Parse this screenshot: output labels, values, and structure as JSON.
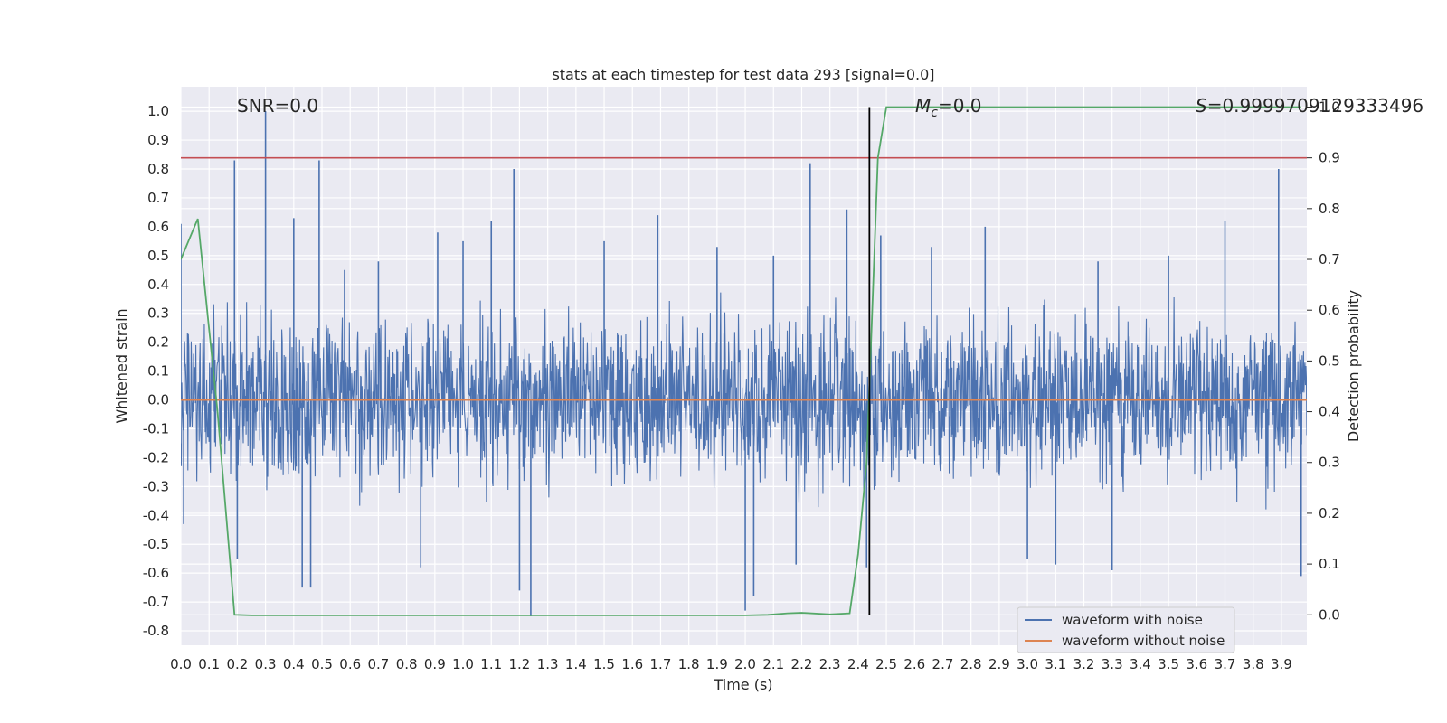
{
  "chart_data": {
    "type": "line",
    "title": "stats at each timestep for test data 293 [signal=0.0]",
    "xlabel": "Time (s)",
    "ylabel": "Whitened strain",
    "ylabel_right": "Detection probability",
    "xlim": [
      0.0,
      3.99
    ],
    "ylim": [
      -0.85,
      1.085
    ],
    "ylim_right": [
      -0.06,
      1.04
    ],
    "x_ticks": [
      "0.0",
      "0.1",
      "0.2",
      "0.3",
      "0.4",
      "0.5",
      "0.6",
      "0.7",
      "0.8",
      "0.9",
      "1.0",
      "1.1",
      "1.2",
      "1.3",
      "1.4",
      "1.5",
      "1.6",
      "1.7",
      "1.8",
      "1.9",
      "2.0",
      "2.1",
      "2.2",
      "2.3",
      "2.4",
      "2.5",
      "2.6",
      "2.7",
      "2.8",
      "2.9",
      "3.0",
      "3.1",
      "3.2",
      "3.3",
      "3.4",
      "3.5",
      "3.6",
      "3.7",
      "3.8",
      "3.9"
    ],
    "y_ticks": [
      "-0.8",
      "-0.7",
      "-0.6",
      "-0.5",
      "-0.4",
      "-0.3",
      "-0.2",
      "-0.1",
      "0.0",
      "0.1",
      "0.2",
      "0.3",
      "0.4",
      "0.5",
      "0.6",
      "0.7",
      "0.8",
      "0.9",
      "1.0"
    ],
    "y_ticks_right": [
      "0.0",
      "0.1",
      "0.2",
      "0.3",
      "0.4",
      "0.5",
      "0.6",
      "0.7",
      "0.8",
      "0.9",
      "1.0"
    ],
    "grid": true,
    "legend_position": "lower-right",
    "annotations": {
      "snr": "SNR=0.0",
      "mc_symbol": "M",
      "mc_sub": "c",
      "mc_value": "=0.0",
      "s_symbol": "S",
      "s_value": "=0.9999709129333496"
    },
    "series": [
      {
        "name": "waveform with noise",
        "color": "#4c72b0",
        "noise_envelope": {
          "typical_min": -0.4,
          "typical_max": 0.4
        },
        "spikes": [
          {
            "x": 0.0,
            "y": 0.61
          },
          {
            "x": 0.01,
            "y": -0.43
          },
          {
            "x": 0.19,
            "y": 0.83
          },
          {
            "x": 0.2,
            "y": -0.55
          },
          {
            "x": 0.3,
            "y": 1.0
          },
          {
            "x": 0.4,
            "y": 0.63
          },
          {
            "x": 0.43,
            "y": -0.65
          },
          {
            "x": 0.46,
            "y": -0.65
          },
          {
            "x": 0.49,
            "y": 0.83
          },
          {
            "x": 0.58,
            "y": 0.45
          },
          {
            "x": 0.7,
            "y": 0.48
          },
          {
            "x": 0.85,
            "y": -0.58
          },
          {
            "x": 0.91,
            "y": 0.58
          },
          {
            "x": 1.0,
            "y": 0.55
          },
          {
            "x": 1.1,
            "y": 0.62
          },
          {
            "x": 1.18,
            "y": 0.8
          },
          {
            "x": 1.2,
            "y": -0.66
          },
          {
            "x": 1.24,
            "y": -0.75
          },
          {
            "x": 1.5,
            "y": 0.55
          },
          {
            "x": 1.69,
            "y": 0.64
          },
          {
            "x": 1.9,
            "y": 0.53
          },
          {
            "x": 2.0,
            "y": -0.73
          },
          {
            "x": 2.03,
            "y": -0.68
          },
          {
            "x": 2.1,
            "y": 0.5
          },
          {
            "x": 2.18,
            "y": -0.57
          },
          {
            "x": 2.23,
            "y": 0.82
          },
          {
            "x": 2.36,
            "y": 0.66
          },
          {
            "x": 2.43,
            "y": -0.58
          },
          {
            "x": 2.48,
            "y": 0.57
          },
          {
            "x": 2.66,
            "y": 0.53
          },
          {
            "x": 2.85,
            "y": 0.6
          },
          {
            "x": 3.0,
            "y": -0.55
          },
          {
            "x": 3.1,
            "y": -0.57
          },
          {
            "x": 3.25,
            "y": 0.48
          },
          {
            "x": 3.3,
            "y": -0.59
          },
          {
            "x": 3.5,
            "y": 0.5
          },
          {
            "x": 3.7,
            "y": 0.62
          },
          {
            "x": 3.89,
            "y": 0.8
          },
          {
            "x": 3.97,
            "y": -0.61
          }
        ]
      },
      {
        "name": "waveform without noise",
        "color": "#dd8452",
        "x": [
          0.0,
          3.99
        ],
        "y": [
          0.0,
          0.0
        ]
      },
      {
        "name": "",
        "color": "#55a868",
        "axis": "right",
        "x": [
          0.0,
          0.06,
          0.13,
          0.19,
          0.25,
          1.5,
          2.0,
          2.08,
          2.15,
          2.2,
          2.3,
          2.37,
          2.4,
          2.43,
          2.47,
          2.5,
          3.1,
          3.97
        ],
        "y": [
          0.7,
          0.78,
          0.4,
          0.0,
          -0.001,
          -0.001,
          -0.001,
          0.0,
          0.003,
          0.004,
          0.001,
          0.003,
          0.12,
          0.3,
          0.9,
          1.0,
          1.0,
          1.0
        ]
      }
    ],
    "hlines": [
      {
        "axis": "right",
        "y": 0.9,
        "color": "#c44e52"
      }
    ],
    "vlines": [
      {
        "x": 2.44,
        "y_from": 0.0,
        "y_to": 1.0,
        "axis": "right",
        "color": "#000000"
      }
    ]
  }
}
